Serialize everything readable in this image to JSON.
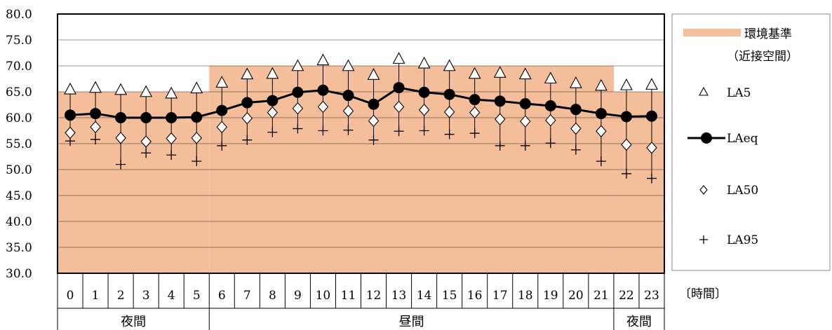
{
  "chart_data": {
    "type": "line",
    "ylim": [
      30,
      80
    ],
    "yticks": [
      "30.0",
      "35.0",
      "40.0",
      "45.0",
      "50.0",
      "55.0",
      "60.0",
      "65.0",
      "70.0",
      "75.0",
      "80.0"
    ],
    "categories": [
      "0",
      "1",
      "2",
      "3",
      "4",
      "5",
      "6",
      "7",
      "8",
      "9",
      "10",
      "11",
      "12",
      "13",
      "14",
      "15",
      "16",
      "17",
      "18",
      "19",
      "20",
      "21",
      "22",
      "23"
    ],
    "x_unit_label": "〔時間〕",
    "periods": [
      {
        "label": "夜間",
        "start": 0,
        "end": 5
      },
      {
        "label": "昼間",
        "start": 6,
        "end": 21
      },
      {
        "label": "夜間",
        "start": 22,
        "end": 23
      }
    ],
    "standard": {
      "name_line1": "環境基準",
      "name_line2": "（近接空間）",
      "color": "#F5BE9A",
      "values": [
        65,
        65,
        65,
        65,
        65,
        65,
        70,
        70,
        70,
        70,
        70,
        70,
        70,
        70,
        70,
        70,
        70,
        70,
        70,
        70,
        70,
        70,
        65,
        65
      ]
    },
    "series": [
      {
        "name": "LA5",
        "marker": "triangle",
        "values": [
          65.4,
          65.7,
          65.3,
          64.9,
          64.6,
          65.6,
          66.7,
          68.3,
          68.4,
          69.9,
          71.0,
          69.9,
          68.2,
          71.3,
          70.4,
          69.9,
          68.4,
          68.6,
          68.3,
          67.5,
          66.6,
          66.1,
          66.2,
          66.3
        ]
      },
      {
        "name": "LAeq",
        "marker": "circle",
        "values": [
          60.5,
          60.8,
          60.0,
          60.0,
          60.0,
          60.1,
          61.4,
          62.9,
          63.3,
          64.9,
          65.3,
          64.3,
          62.6,
          65.8,
          64.9,
          64.5,
          63.5,
          63.2,
          62.7,
          62.3,
          61.6,
          60.8,
          60.2,
          60.3
        ]
      },
      {
        "name": "LA50",
        "marker": "diamond",
        "values": [
          57.1,
          58.2,
          56.1,
          55.4,
          56.0,
          56.1,
          58.2,
          59.9,
          61.0,
          61.8,
          62.1,
          61.3,
          59.4,
          62.1,
          61.5,
          61.1,
          61.0,
          59.7,
          59.3,
          59.5,
          57.9,
          57.4,
          54.8,
          54.2
        ]
      },
      {
        "name": "LA95",
        "marker": "plus",
        "values": [
          55.5,
          55.8,
          51.0,
          53.2,
          52.8,
          51.6,
          54.6,
          55.7,
          57.2,
          57.9,
          57.5,
          57.6,
          55.7,
          57.4,
          57.5,
          56.8,
          57.0,
          54.6,
          54.6,
          55.1,
          53.8,
          51.6,
          49.2,
          48.3
        ]
      }
    ],
    "grid": true,
    "legend": "right"
  }
}
